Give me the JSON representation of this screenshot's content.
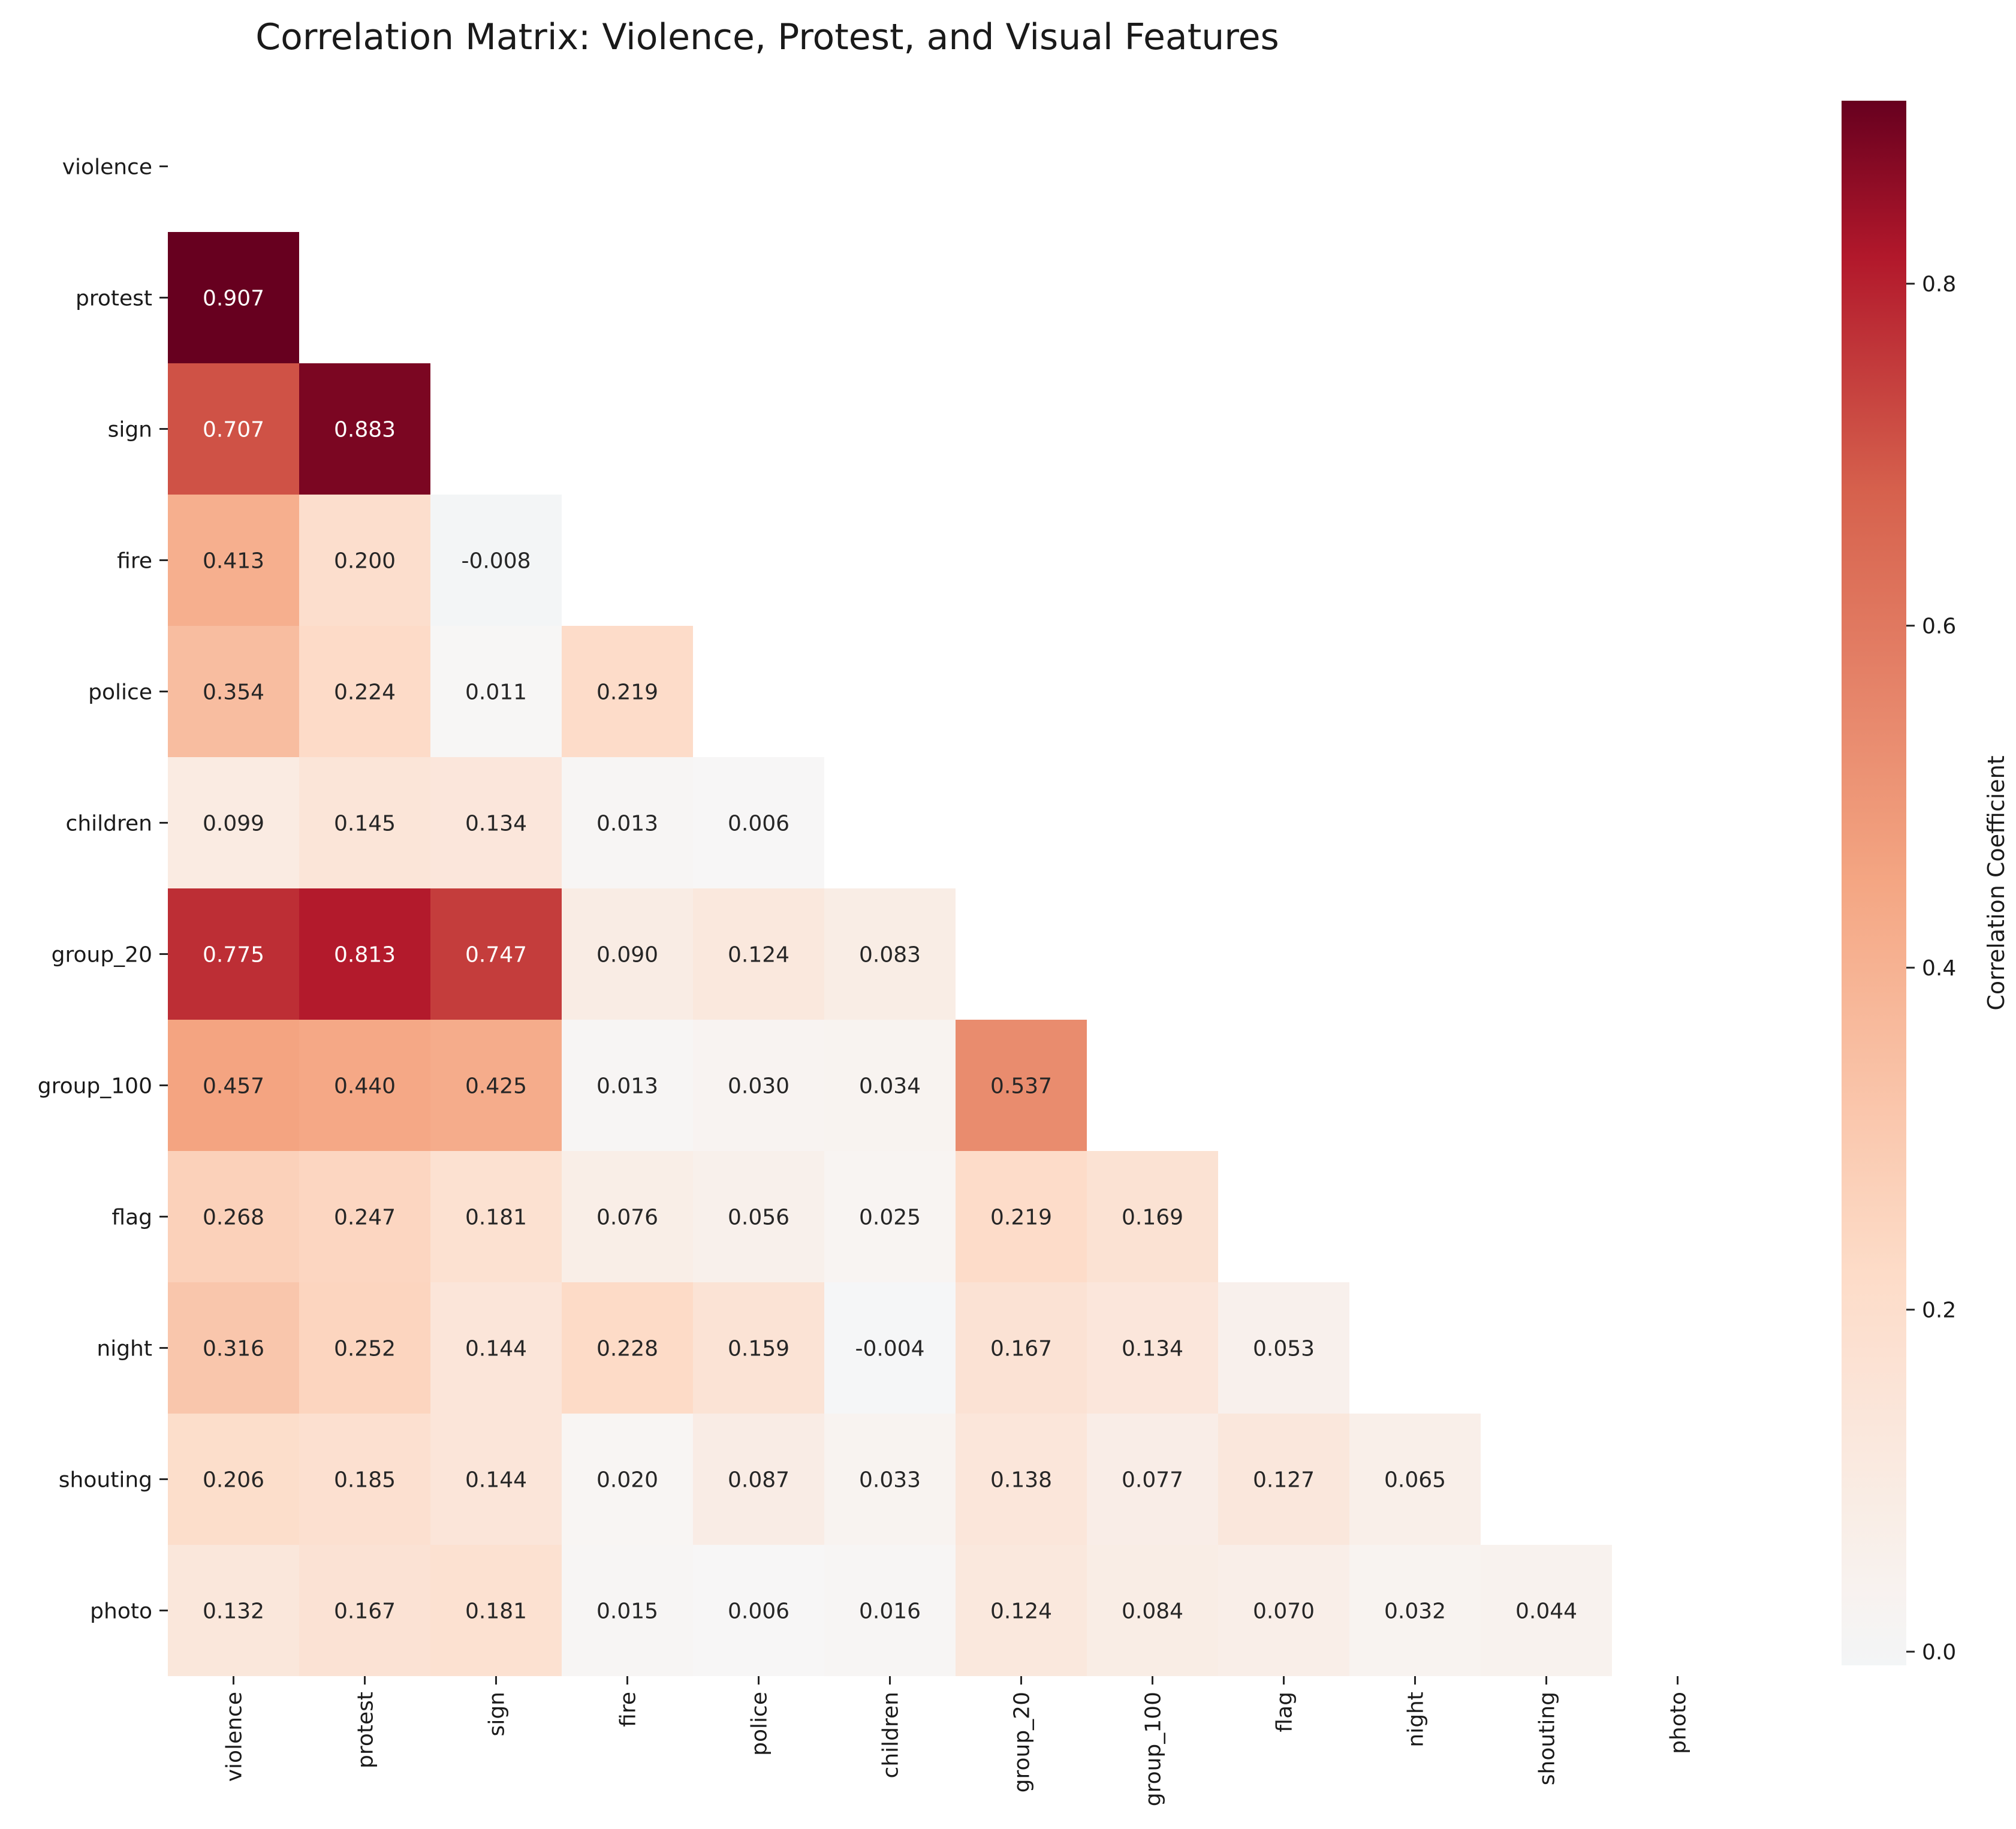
{
  "chart_data": {
    "type": "heatmap",
    "title": "Correlation Matrix: Violence, Protest, and Visual Features",
    "labels": [
      "violence",
      "protest",
      "sign",
      "fire",
      "police",
      "children",
      "group_20",
      "group_100",
      "flag",
      "night",
      "shouting",
      "photo"
    ],
    "mask": "upper-triangle-and-diagonal",
    "matrix": [
      [
        null,
        null,
        null,
        null,
        null,
        null,
        null,
        null,
        null,
        null,
        null,
        null
      ],
      [
        0.907,
        null,
        null,
        null,
        null,
        null,
        null,
        null,
        null,
        null,
        null,
        null
      ],
      [
        0.707,
        0.883,
        null,
        null,
        null,
        null,
        null,
        null,
        null,
        null,
        null,
        null
      ],
      [
        0.413,
        0.2,
        -0.008,
        null,
        null,
        null,
        null,
        null,
        null,
        null,
        null,
        null
      ],
      [
        0.354,
        0.224,
        0.011,
        0.219,
        null,
        null,
        null,
        null,
        null,
        null,
        null,
        null
      ],
      [
        0.099,
        0.145,
        0.134,
        0.013,
        0.006,
        null,
        null,
        null,
        null,
        null,
        null,
        null
      ],
      [
        0.775,
        0.813,
        0.747,
        0.09,
        0.124,
        0.083,
        null,
        null,
        null,
        null,
        null,
        null
      ],
      [
        0.457,
        0.44,
        0.425,
        0.013,
        0.03,
        0.034,
        0.537,
        null,
        null,
        null,
        null,
        null
      ],
      [
        0.268,
        0.247,
        0.181,
        0.076,
        0.056,
        0.025,
        0.219,
        0.169,
        null,
        null,
        null,
        null
      ],
      [
        0.316,
        0.252,
        0.144,
        0.228,
        0.159,
        -0.004,
        0.167,
        0.134,
        0.053,
        null,
        null,
        null
      ],
      [
        0.206,
        0.185,
        0.144,
        0.02,
        0.087,
        0.033,
        0.138,
        0.077,
        0.127,
        0.065,
        null,
        null
      ],
      [
        0.132,
        0.167,
        0.181,
        0.015,
        0.006,
        0.016,
        0.124,
        0.084,
        0.07,
        0.032,
        0.044,
        null
      ]
    ],
    "value_format": "3 decimals",
    "colormap": "RdBu_r",
    "colorbar": {
      "label": "Correlation Coefficient",
      "range": [
        -0.008,
        0.907
      ],
      "ticks": [
        0.0,
        0.2,
        0.4,
        0.6,
        0.8
      ],
      "tick_labels": [
        "0.0",
        "0.2",
        "0.4",
        "0.6",
        "0.8"
      ]
    },
    "grid": false
  }
}
